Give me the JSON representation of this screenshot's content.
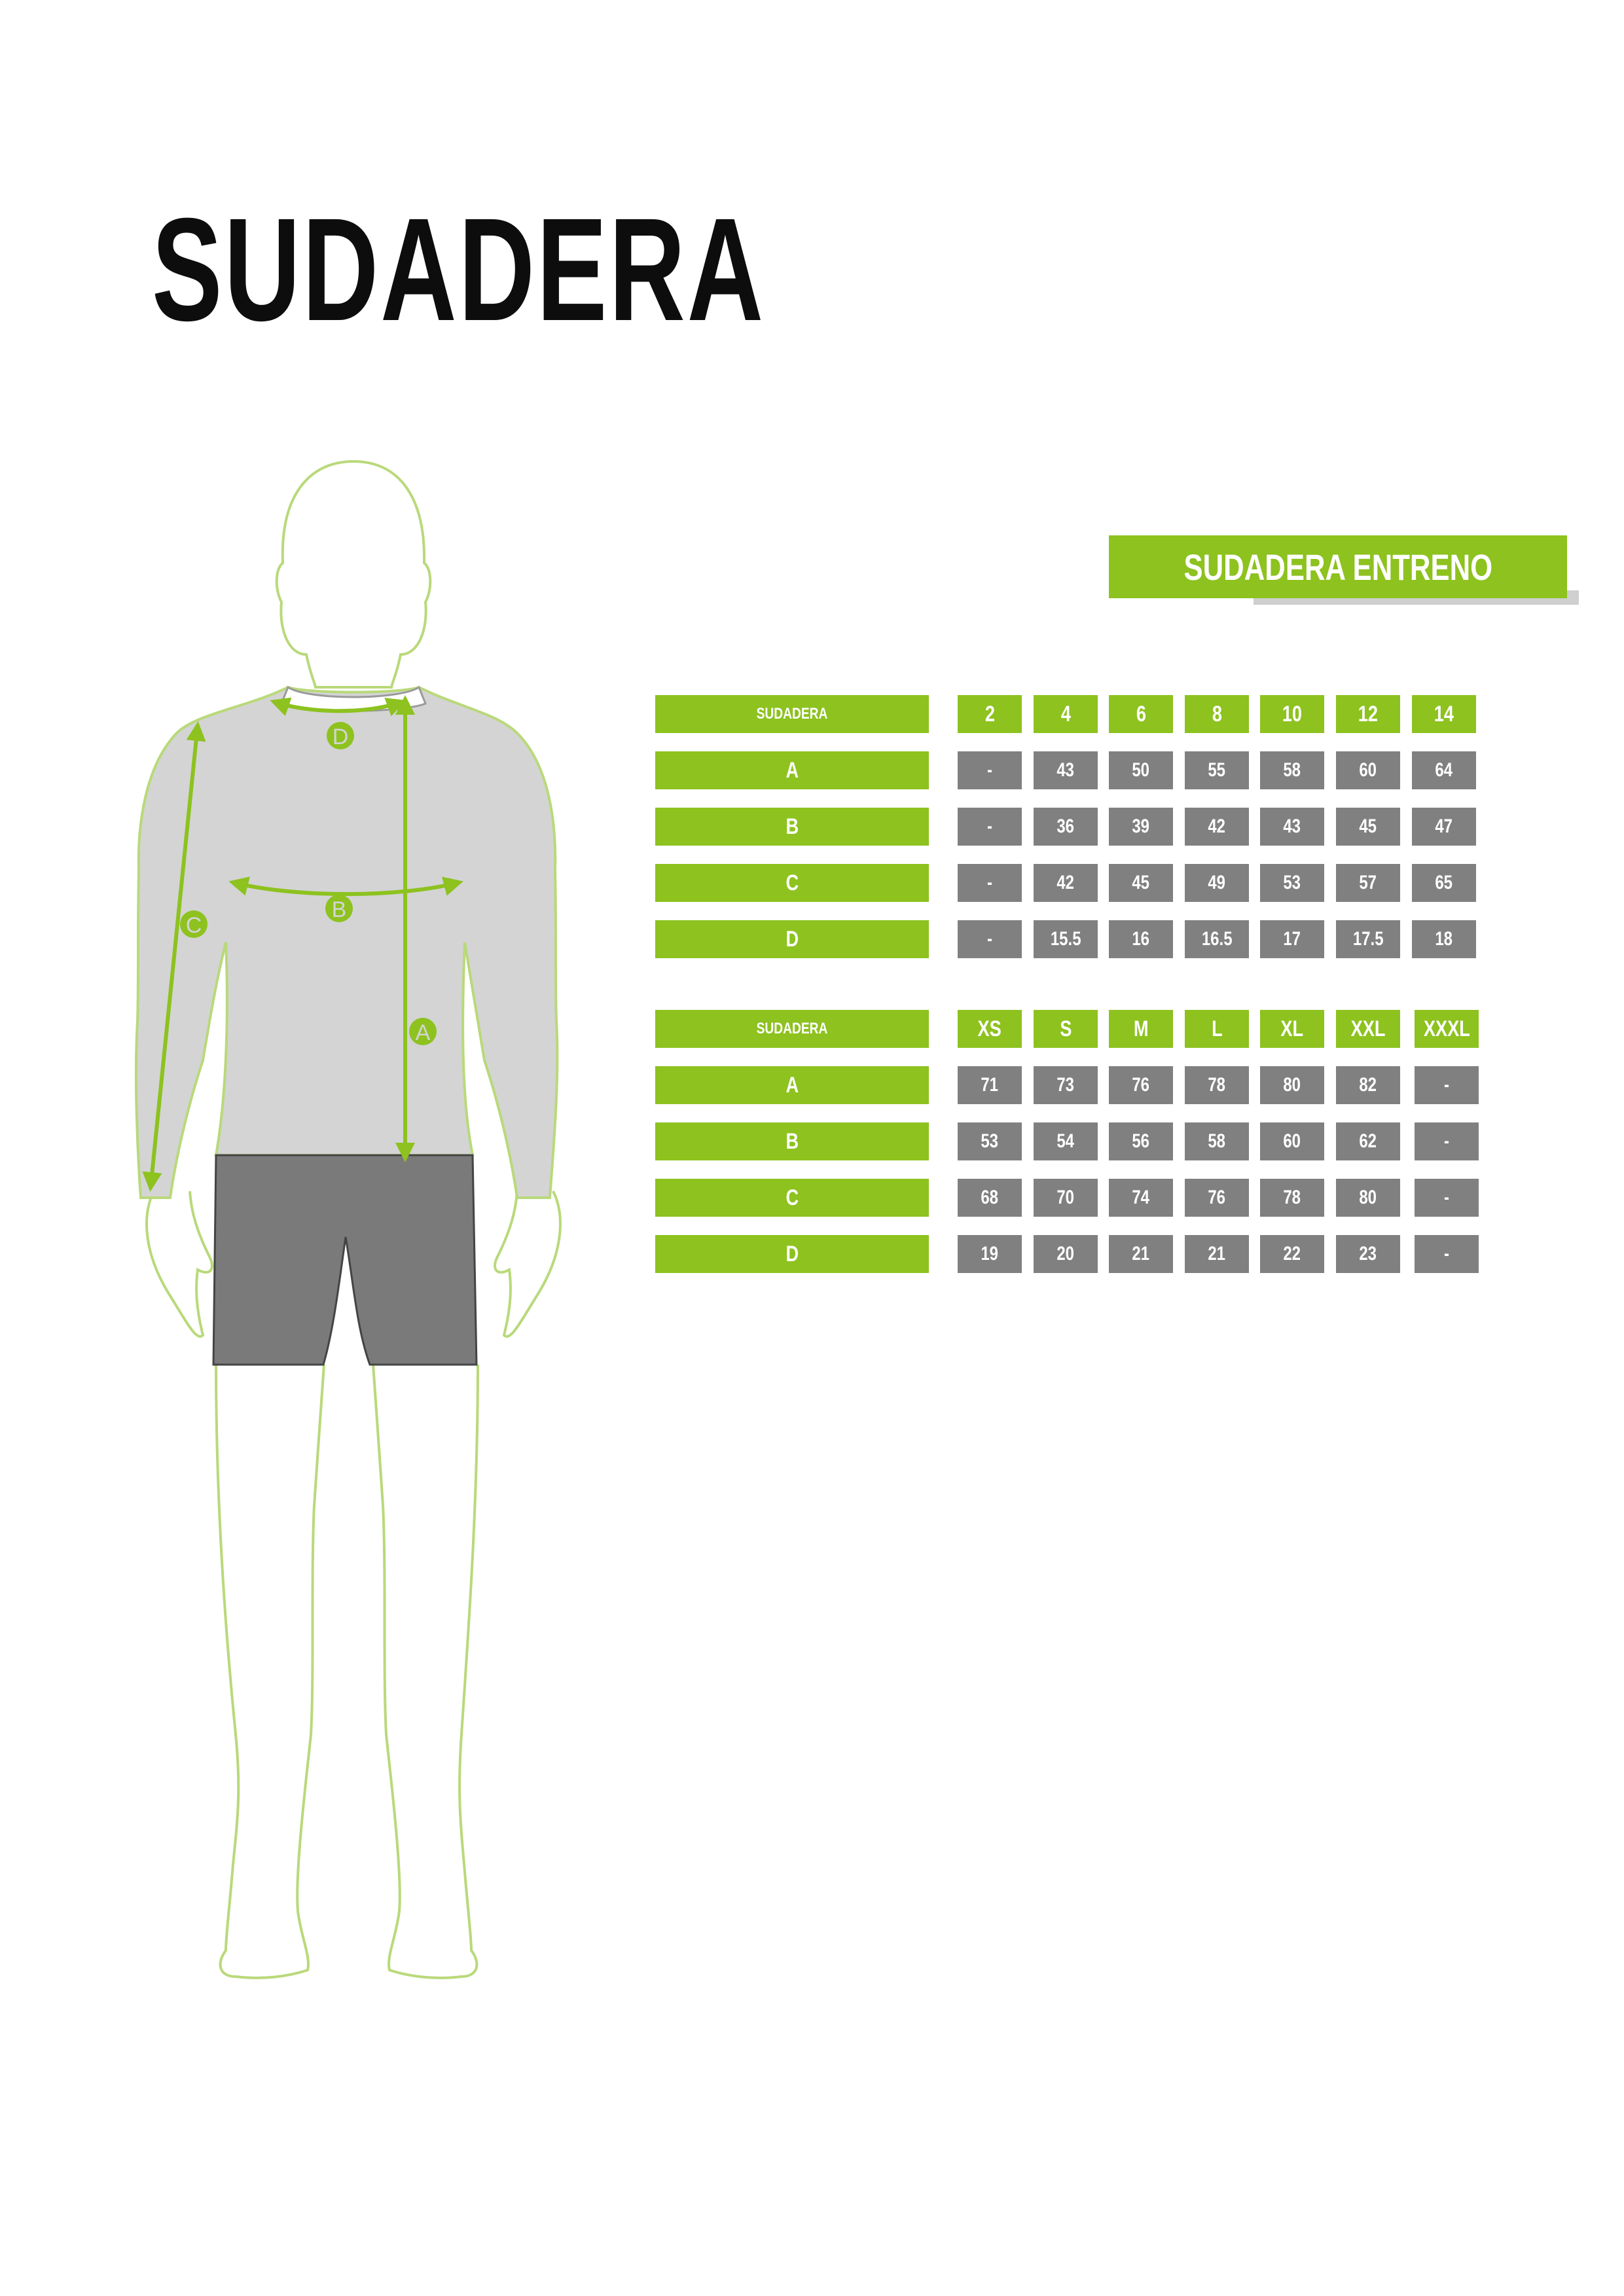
{
  "page": {
    "title": "SUDADERA"
  },
  "banner": {
    "title": "SUDADERA ENTRENO"
  },
  "colors": {
    "accent": "#8dc21f",
    "value_cell": "#808080",
    "shirt": "#d4d4d4",
    "shorts": "#7a7a7a"
  },
  "figure": {
    "marker_a": "A",
    "marker_b": "B",
    "marker_c": "C",
    "marker_d": "D"
  },
  "kids_table": {
    "header": {
      "label": "SUDADERA",
      "sizes": [
        "2",
        "4",
        "6",
        "8",
        "10",
        "12",
        "14"
      ]
    },
    "rows": [
      {
        "label": "A",
        "values": [
          "-",
          "43",
          "50",
          "55",
          "58",
          "60",
          "64"
        ]
      },
      {
        "label": "B",
        "values": [
          "-",
          "36",
          "39",
          "42",
          "43",
          "45",
          "47"
        ]
      },
      {
        "label": "C",
        "values": [
          "-",
          "42",
          "45",
          "49",
          "53",
          "57",
          "65"
        ]
      },
      {
        "label": "D",
        "values": [
          "-",
          "15.5",
          "16",
          "16.5",
          "17",
          "17.5",
          "18"
        ]
      }
    ]
  },
  "adult_table": {
    "header": {
      "label": "SUDADERA",
      "sizes": [
        "XS",
        "S",
        "M",
        "L",
        "XL",
        "XXL",
        "XXXL"
      ]
    },
    "rows": [
      {
        "label": "A",
        "values": [
          "71",
          "73",
          "76",
          "78",
          "80",
          "82",
          "-"
        ]
      },
      {
        "label": "B",
        "values": [
          "53",
          "54",
          "56",
          "58",
          "60",
          "62",
          "-"
        ]
      },
      {
        "label": "C",
        "values": [
          "68",
          "70",
          "74",
          "76",
          "78",
          "80",
          "-"
        ]
      },
      {
        "label": "D",
        "values": [
          "19",
          "20",
          "21",
          "21",
          "22",
          "23",
          "-"
        ]
      }
    ]
  }
}
